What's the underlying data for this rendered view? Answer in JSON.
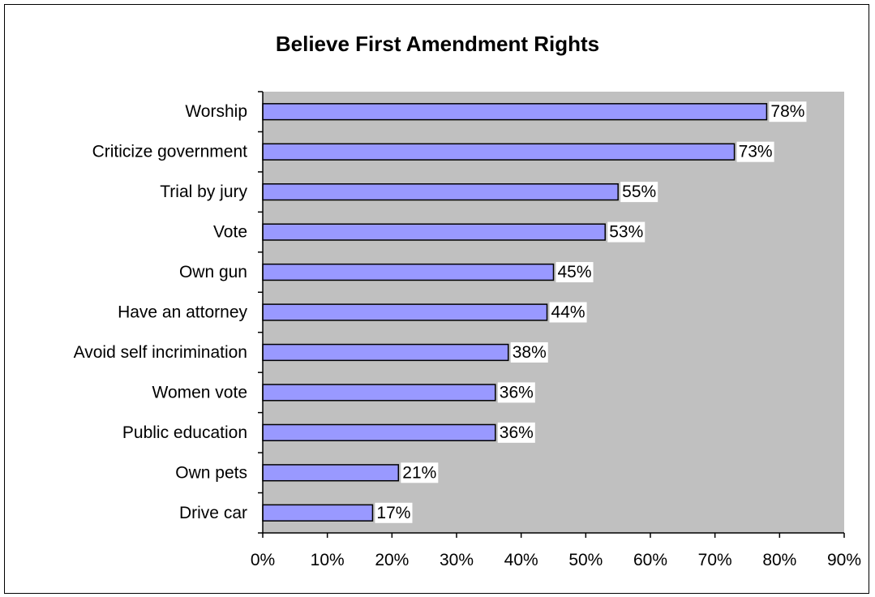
{
  "chart_data": {
    "type": "bar",
    "orientation": "horizontal",
    "title": "Believe First Amendment Rights",
    "xlabel": "",
    "ylabel": "",
    "categories": [
      "Worship",
      "Criticize government",
      "Trial by jury",
      "Vote",
      "Own gun",
      "Have an attorney",
      "Avoid self incrimination",
      "Women vote",
      "Public education",
      "Own pets",
      "Drive car"
    ],
    "values": [
      78,
      73,
      55,
      53,
      45,
      44,
      38,
      36,
      36,
      21,
      17
    ],
    "data_labels": [
      "78%",
      "73%",
      "55%",
      "53%",
      "45%",
      "44%",
      "38%",
      "36%",
      "36%",
      "21%",
      "17%"
    ],
    "xlim": [
      0,
      90
    ],
    "x_ticks": [
      "0%",
      "10%",
      "20%",
      "30%",
      "40%",
      "50%",
      "60%",
      "70%",
      "80%",
      "90%"
    ],
    "grid": false,
    "legend": "none",
    "colors": {
      "bar_fill": "#9999ff",
      "bar_stroke": "#000000",
      "plot_background": "#c0c0c0",
      "label_background": "#ffffff"
    }
  }
}
